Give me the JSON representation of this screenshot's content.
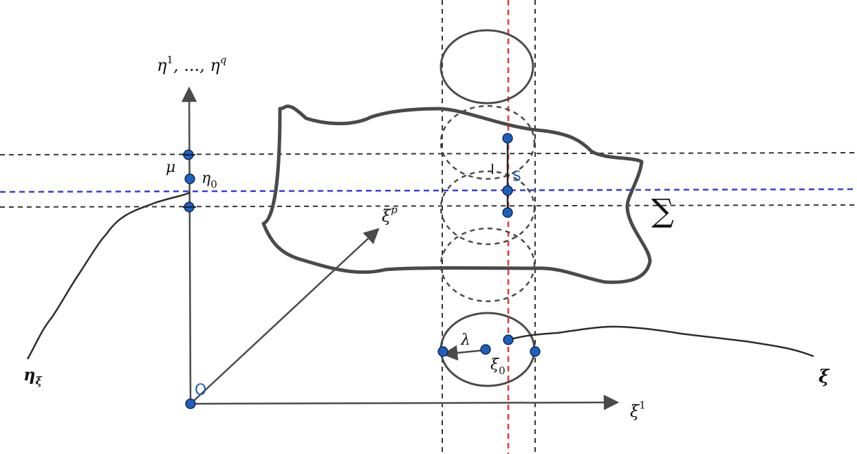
{
  "diagram": {
    "labels": {
      "eta_axis_base": "η",
      "eta_axis_sup1": "1",
      "eta_axis_mid": ", ..., η",
      "eta_axis_supq": "q",
      "mu": "μ",
      "eta0_base": "η",
      "eta0_sub": "0",
      "xip_base": "ξ",
      "xip_sup": "p",
      "xi1_base": "ξ",
      "xi1_sup": "1",
      "eta_xi_base": "η",
      "eta_xi_sub": "ξ",
      "xi_bold": "ξ",
      "origin": "O",
      "lambda": "λ",
      "xi0_base": "ξ",
      "xi0_sub": "0",
      "I": "I",
      "S": "S",
      "sigma": "∑"
    },
    "colors": {
      "axis": "#4a4a4a",
      "surface": "#4a4a4a",
      "dashed_black": "#333333",
      "dashed_blue": "#3a3ae0",
      "dashed_red": "#ee3333",
      "point_fill": "#1c5fbf"
    }
  }
}
